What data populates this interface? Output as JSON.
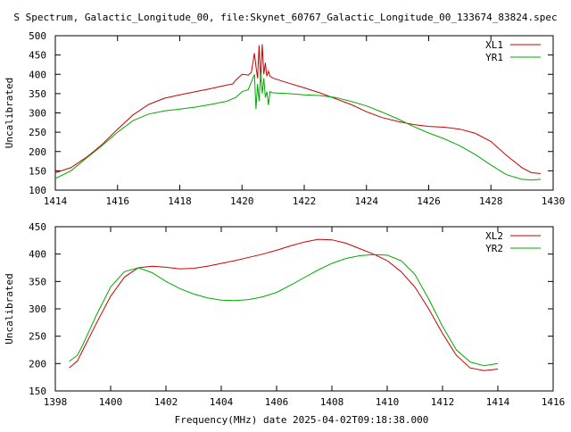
{
  "page_title": "S Spectrum, Galactic_Longitude_00, file:Skynet_60767_Galactic_Longitude_00_133674_83824.spec",
  "x_axis_label": "Frequency(MHz) date 2025-04-02T09:18:38.000",
  "colors": {
    "red": "#cc0000",
    "green": "#00aa00"
  },
  "chart_data": [
    {
      "type": "line",
      "ylabel": "Uncalibrated",
      "xlim": [
        1414,
        1430
      ],
      "ylim": [
        100,
        500
      ],
      "xticks": [
        1414,
        1416,
        1418,
        1420,
        1422,
        1424,
        1426,
        1428,
        1430
      ],
      "yticks": [
        100,
        150,
        200,
        250,
        300,
        350,
        400,
        450,
        500
      ],
      "grid": false,
      "legend": "top-right",
      "series": [
        {
          "name": "XL1",
          "color": "#cc0000",
          "x": [
            1414.0,
            1414.5,
            1415.0,
            1415.5,
            1416.0,
            1416.5,
            1417.0,
            1417.5,
            1418.0,
            1418.5,
            1419.0,
            1419.5,
            1419.7,
            1419.8,
            1420.0,
            1420.2,
            1420.3,
            1420.4,
            1420.45,
            1420.5,
            1420.55,
            1420.6,
            1420.65,
            1420.7,
            1420.75,
            1420.8,
            1420.85,
            1420.9,
            1421.0,
            1421.5,
            1422.0,
            1422.5,
            1423.0,
            1423.5,
            1424.0,
            1424.5,
            1425.0,
            1425.5,
            1426.0,
            1426.5,
            1427.0,
            1427.5,
            1428.0,
            1428.5,
            1429.0,
            1429.3,
            1429.6
          ],
          "values": [
            145,
            158,
            185,
            218,
            258,
            295,
            322,
            338,
            347,
            355,
            363,
            372,
            375,
            385,
            400,
            398,
            405,
            455,
            420,
            390,
            475,
            380,
            478,
            400,
            430,
            395,
            408,
            395,
            390,
            377,
            365,
            352,
            337,
            322,
            303,
            288,
            278,
            270,
            265,
            263,
            258,
            247,
            226,
            190,
            158,
            145,
            143
          ]
        },
        {
          "name": "YR1",
          "color": "#00aa00",
          "x": [
            1414.0,
            1414.5,
            1415.0,
            1415.5,
            1416.0,
            1416.5,
            1417.0,
            1417.5,
            1418.0,
            1418.5,
            1419.0,
            1419.5,
            1419.8,
            1420.0,
            1420.2,
            1420.4,
            1420.45,
            1420.5,
            1420.55,
            1420.6,
            1420.65,
            1420.7,
            1420.75,
            1420.8,
            1420.85,
            1420.9,
            1421.0,
            1421.5,
            1422.0,
            1422.5,
            1423.0,
            1423.5,
            1424.0,
            1424.5,
            1425.0,
            1425.5,
            1426.0,
            1426.5,
            1427.0,
            1427.5,
            1428.0,
            1428.5,
            1429.0,
            1429.3,
            1429.6
          ],
          "values": [
            130,
            150,
            183,
            215,
            250,
            280,
            297,
            305,
            310,
            315,
            322,
            330,
            340,
            355,
            360,
            400,
            310,
            375,
            330,
            405,
            350,
            390,
            340,
            355,
            320,
            355,
            352,
            350,
            347,
            345,
            340,
            330,
            318,
            302,
            285,
            265,
            248,
            233,
            215,
            192,
            165,
            140,
            128,
            126,
            128
          ]
        }
      ]
    },
    {
      "type": "line",
      "ylabel": "Uncalibrated",
      "xlim": [
        1398,
        1416
      ],
      "ylim": [
        150,
        450
      ],
      "xticks": [
        1398,
        1400,
        1402,
        1404,
        1406,
        1408,
        1410,
        1412,
        1414,
        1416
      ],
      "yticks": [
        150,
        200,
        250,
        300,
        350,
        400,
        450
      ],
      "grid": false,
      "legend": "top-right",
      "series": [
        {
          "name": "XL2",
          "color": "#cc0000",
          "x": [
            1398.5,
            1398.8,
            1399.0,
            1399.5,
            1400.0,
            1400.5,
            1401.0,
            1401.5,
            1402.0,
            1402.5,
            1403.0,
            1403.5,
            1404.0,
            1404.5,
            1405.0,
            1405.5,
            1406.0,
            1406.5,
            1407.0,
            1407.5,
            1408.0,
            1408.5,
            1409.0,
            1409.5,
            1410.0,
            1410.5,
            1411.0,
            1411.5,
            1412.0,
            1412.5,
            1413.0,
            1413.5,
            1414.0
          ],
          "values": [
            192,
            205,
            225,
            275,
            323,
            358,
            375,
            378,
            376,
            373,
            374,
            378,
            383,
            388,
            394,
            400,
            407,
            415,
            422,
            427,
            426,
            420,
            410,
            400,
            388,
            368,
            340,
            300,
            255,
            215,
            192,
            187,
            190
          ]
        },
        {
          "name": "YR2",
          "color": "#00aa00",
          "x": [
            1398.5,
            1398.8,
            1399.0,
            1399.5,
            1400.0,
            1400.5,
            1401.0,
            1401.5,
            1402.0,
            1402.5,
            1403.0,
            1403.5,
            1404.0,
            1404.5,
            1405.0,
            1405.5,
            1406.0,
            1406.5,
            1407.0,
            1407.5,
            1408.0,
            1408.5,
            1409.0,
            1409.5,
            1410.0,
            1410.5,
            1411.0,
            1411.5,
            1412.0,
            1412.5,
            1413.0,
            1413.5,
            1414.0
          ],
          "values": [
            204,
            215,
            235,
            290,
            340,
            368,
            375,
            366,
            350,
            337,
            327,
            320,
            316,
            315,
            317,
            322,
            330,
            343,
            357,
            371,
            383,
            392,
            397,
            399,
            398,
            388,
            363,
            318,
            268,
            225,
            203,
            196,
            200
          ]
        }
      ]
    }
  ]
}
